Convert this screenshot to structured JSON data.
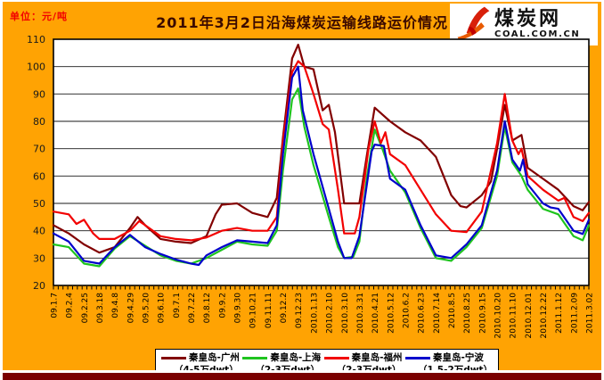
{
  "page": {
    "unit_label": "单位：元/吨",
    "title": "2011年3月2日沿海煤炭运输线路运价情况"
  },
  "logo": {
    "cn": "煤炭网",
    "en": "COAL.COM.CN"
  },
  "colors": {
    "background": "#FFA303",
    "plot_background": "#FFFFFF",
    "gridline": "#1a1a1a",
    "title_text": "#3a0a00",
    "unit_text": "#F20000",
    "bottom_bar": "#7A0000",
    "logo_mark": "#D8200A"
  },
  "legend": [
    {
      "name": "秦皇岛-广州",
      "sub": "（4-5万dwt）",
      "color": "#820000"
    },
    {
      "name": "秦皇岛-上海",
      "sub": "（2-3万dwt）",
      "color": "#1FC41F"
    },
    {
      "name": "秦皇岛-福州",
      "sub": "（2-3万dwt）",
      "color": "#F20000"
    },
    {
      "name": "秦皇岛-宁波",
      "sub": "（1.5-2万dwt）",
      "color": "#0000CC"
    }
  ],
  "chart_data": {
    "type": "line",
    "title": "2011年3月2日沿海煤炭运输线路运价情况",
    "ylabel": "元/吨",
    "ylim": [
      20,
      110
    ],
    "ytick_step": 10,
    "grid": "horizontal",
    "legend_position": "bottom",
    "x_encoding": "points are [label_index, price_yuan_per_ton]; fractional indices are weekly readings between labeled dates",
    "x_labels": [
      "09.1.7",
      "09.2.4",
      "09.2.25",
      "09.3.18",
      "09.4.8",
      "09.4.29",
      "09.5.20",
      "09.6.10",
      "09.7.1",
      "09.7.22",
      "09.8.12",
      "09.9.2",
      "09.9.30",
      "09.10.21",
      "09.11.11",
      "09.12.2",
      "09.12.23",
      "2010.1.13",
      "2010.2.10",
      "2010.3.10",
      "2010.3.31",
      "2010.4.21",
      "2010.5.12",
      "2010.6.2",
      "2010.6.23",
      "2010.7.14",
      "2010.8.5",
      "2010.8.25",
      "2010.9.15",
      "2010.10.20",
      "2010.11.10",
      "2010.12.01",
      "2010.12.22",
      "2011.1.12",
      "2011.2.09",
      "2011.3.02"
    ],
    "series": [
      {
        "key": "qhd-guangzhou",
        "name": "秦皇岛-广州",
        "dwt": "4-5万dwt",
        "color": "#820000",
        "points": [
          [
            0,
            42
          ],
          [
            1,
            39
          ],
          [
            2,
            35
          ],
          [
            3,
            32
          ],
          [
            4,
            34
          ],
          [
            5,
            41
          ],
          [
            5.5,
            45
          ],
          [
            6,
            42
          ],
          [
            7,
            37
          ],
          [
            8,
            36
          ],
          [
            9,
            35.5
          ],
          [
            10,
            38
          ],
          [
            10.6,
            46
          ],
          [
            11,
            49.5
          ],
          [
            12,
            50
          ],
          [
            13,
            46.5
          ],
          [
            14,
            45
          ],
          [
            14.6,
            52
          ],
          [
            15,
            74
          ],
          [
            15.6,
            103
          ],
          [
            16,
            108
          ],
          [
            16.4,
            100
          ],
          [
            17,
            99
          ],
          [
            17.6,
            84
          ],
          [
            18,
            86
          ],
          [
            18.4,
            76
          ],
          [
            19,
            50
          ],
          [
            20,
            50
          ],
          [
            20.5,
            68
          ],
          [
            21,
            85
          ],
          [
            22,
            80
          ],
          [
            23,
            76
          ],
          [
            24,
            73
          ],
          [
            25,
            67
          ],
          [
            25.5,
            60
          ],
          [
            26,
            53
          ],
          [
            26.6,
            49
          ],
          [
            27,
            48.5
          ],
          [
            28,
            53
          ],
          [
            28.6,
            58
          ],
          [
            29,
            70
          ],
          [
            29.5,
            86
          ],
          [
            30,
            73
          ],
          [
            30.6,
            75
          ],
          [
            31,
            63
          ],
          [
            32,
            59
          ],
          [
            33,
            55
          ],
          [
            34,
            49
          ],
          [
            34.6,
            47.5
          ],
          [
            35,
            50.5
          ]
        ]
      },
      {
        "key": "qhd-shanghai",
        "name": "秦皇岛-上海",
        "dwt": "2-3万dwt",
        "color": "#1FC41F",
        "points": [
          [
            0,
            35
          ],
          [
            1,
            34
          ],
          [
            2,
            28
          ],
          [
            3,
            27
          ],
          [
            4,
            33.5
          ],
          [
            5,
            38
          ],
          [
            6,
            34.5
          ],
          [
            7,
            31
          ],
          [
            8,
            29
          ],
          [
            9,
            28
          ],
          [
            10,
            30
          ],
          [
            11,
            33
          ],
          [
            12,
            36
          ],
          [
            13,
            35
          ],
          [
            14,
            34.5
          ],
          [
            14.6,
            40
          ],
          [
            15,
            62
          ],
          [
            15.6,
            88
          ],
          [
            16,
            92
          ],
          [
            16.4,
            78
          ],
          [
            17,
            64
          ],
          [
            18,
            45
          ],
          [
            18.6,
            34
          ],
          [
            19,
            30
          ],
          [
            19.6,
            30.5
          ],
          [
            20,
            36
          ],
          [
            20.5,
            60
          ],
          [
            21,
            77
          ],
          [
            21.5,
            70
          ],
          [
            22,
            62
          ],
          [
            23,
            54
          ],
          [
            24,
            41
          ],
          [
            25,
            30
          ],
          [
            26,
            29
          ],
          [
            27,
            34
          ],
          [
            28,
            41
          ],
          [
            29,
            60
          ],
          [
            29.5,
            78
          ],
          [
            30,
            65
          ],
          [
            30.6,
            60
          ],
          [
            31,
            55
          ],
          [
            32,
            48
          ],
          [
            33,
            46
          ],
          [
            34,
            38
          ],
          [
            34.6,
            36.5
          ],
          [
            35,
            42
          ]
        ]
      },
      {
        "key": "qhd-fuzhou",
        "name": "秦皇岛-福州",
        "dwt": "2-3万dwt",
        "color": "#F20000",
        "points": [
          [
            0,
            47
          ],
          [
            1,
            46
          ],
          [
            1.5,
            42.5
          ],
          [
            2,
            44
          ],
          [
            2.6,
            39
          ],
          [
            3,
            37
          ],
          [
            4,
            37
          ],
          [
            5,
            40
          ],
          [
            5.6,
            43.5
          ],
          [
            6,
            42
          ],
          [
            7,
            38
          ],
          [
            8,
            37
          ],
          [
            9,
            36.5
          ],
          [
            10,
            37.5
          ],
          [
            11,
            40
          ],
          [
            12,
            41
          ],
          [
            13,
            40
          ],
          [
            14,
            40
          ],
          [
            14.6,
            45
          ],
          [
            15,
            72
          ],
          [
            15.6,
            98
          ],
          [
            16,
            102
          ],
          [
            16.4,
            100
          ],
          [
            17,
            90
          ],
          [
            17.6,
            79
          ],
          [
            18,
            77
          ],
          [
            18.6,
            55
          ],
          [
            19,
            39
          ],
          [
            19.7,
            39
          ],
          [
            20,
            45
          ],
          [
            20.6,
            70
          ],
          [
            21,
            80
          ],
          [
            21.4,
            72
          ],
          [
            21.7,
            76
          ],
          [
            22,
            68
          ],
          [
            23,
            64
          ],
          [
            24,
            55
          ],
          [
            25,
            46
          ],
          [
            26,
            40
          ],
          [
            27,
            39.5
          ],
          [
            28,
            47
          ],
          [
            29,
            72
          ],
          [
            29.5,
            90
          ],
          [
            30,
            73
          ],
          [
            30.4,
            68
          ],
          [
            30.6,
            70
          ],
          [
            31,
            60
          ],
          [
            32,
            55
          ],
          [
            33,
            51
          ],
          [
            33.4,
            52
          ],
          [
            34,
            45
          ],
          [
            34.6,
            43.5
          ],
          [
            35,
            46.5
          ]
        ]
      },
      {
        "key": "qhd-ningbo",
        "name": "秦皇岛-宁波",
        "dwt": "1.5-2万dwt",
        "color": "#0000CC",
        "points": [
          [
            0,
            39
          ],
          [
            1,
            36
          ],
          [
            2,
            29
          ],
          [
            3,
            28
          ],
          [
            4,
            34
          ],
          [
            5,
            38.5
          ],
          [
            6,
            34
          ],
          [
            7,
            31.5
          ],
          [
            8,
            29.5
          ],
          [
            9,
            28
          ],
          [
            9.5,
            27.5
          ],
          [
            10,
            31
          ],
          [
            11,
            34
          ],
          [
            12,
            36.5
          ],
          [
            13,
            36
          ],
          [
            14,
            35.5
          ],
          [
            14.6,
            42
          ],
          [
            15,
            68
          ],
          [
            15.6,
            96
          ],
          [
            16,
            100
          ],
          [
            16.3,
            84
          ],
          [
            17,
            68
          ],
          [
            18,
            48
          ],
          [
            18.6,
            36
          ],
          [
            19,
            30
          ],
          [
            19.5,
            30
          ],
          [
            20,
            38
          ],
          [
            20.8,
            69
          ],
          [
            21,
            71.5
          ],
          [
            21.6,
            71
          ],
          [
            22,
            59
          ],
          [
            23,
            55
          ],
          [
            24,
            42
          ],
          [
            25,
            31
          ],
          [
            26,
            30
          ],
          [
            27,
            35
          ],
          [
            28,
            42
          ],
          [
            29,
            62
          ],
          [
            29.5,
            80
          ],
          [
            30,
            66
          ],
          [
            30.5,
            62
          ],
          [
            30.7,
            66
          ],
          [
            31,
            57
          ],
          [
            32,
            50
          ],
          [
            32.5,
            48.5
          ],
          [
            33,
            48
          ],
          [
            34,
            40
          ],
          [
            34.6,
            38.8
          ],
          [
            35,
            44
          ]
        ]
      }
    ]
  }
}
